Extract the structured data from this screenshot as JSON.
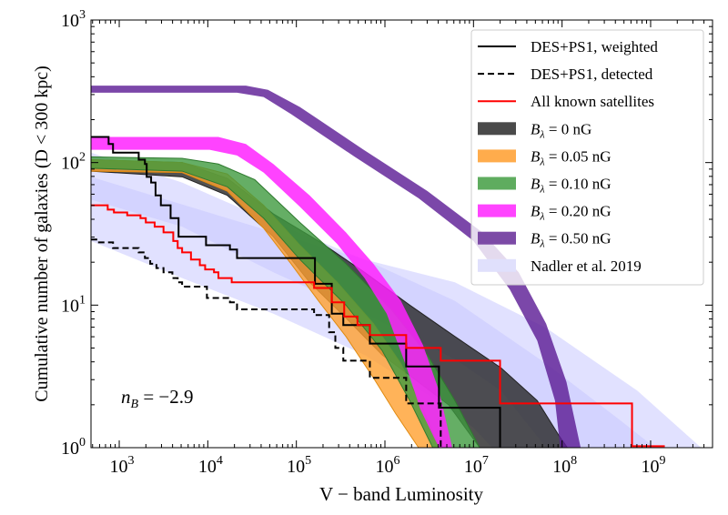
{
  "chart_data": {
    "type": "area",
    "title": "",
    "xlabel": "V − band Luminosity",
    "ylabel": "Cumulative number of galaxies (D < 300 kpc)",
    "xscale": "log",
    "yscale": "log",
    "xlim": [
      480,
      5000000000.0
    ],
    "ylim": [
      1,
      1000
    ],
    "x_ticks": [
      {
        "base": "10",
        "exp": "3",
        "value": 1000.0
      },
      {
        "base": "10",
        "exp": "4",
        "value": 10000.0
      },
      {
        "base": "10",
        "exp": "5",
        "value": 100000.0
      },
      {
        "base": "10",
        "exp": "6",
        "value": 1000000.0
      },
      {
        "base": "10",
        "exp": "7",
        "value": 10000000.0
      },
      {
        "base": "10",
        "exp": "8",
        "value": 100000000.0
      },
      {
        "base": "10",
        "exp": "9",
        "value": 1000000000.0
      }
    ],
    "y_ticks": [
      {
        "base": "10",
        "exp": "0",
        "value": 1
      },
      {
        "base": "10",
        "exp": "1",
        "value": 10
      },
      {
        "base": "10",
        "exp": "2",
        "value": 100
      },
      {
        "base": "10",
        "exp": "3",
        "value": 1000
      }
    ],
    "annotation": {
      "text_main": "n",
      "text_sub": "B",
      "text_rest": " = −2.9"
    },
    "legend_position": "top-right",
    "note": "band and step coordinates given as [log10(L), log10(N)]",
    "bands": [
      {
        "name": "Nadler et al. 2019 (a)",
        "color": "#c8c8ff",
        "opacity": 0.55,
        "upper": [
          [
            2.68,
            2.07
          ],
          [
            3.71,
            1.86
          ],
          [
            4.74,
            1.58
          ],
          [
            5.77,
            1.32
          ],
          [
            6.79,
            1.03
          ],
          [
            7.82,
            0.59
          ],
          [
            8.64,
            0.2
          ],
          [
            9.05,
            0
          ]
        ],
        "lower": [
          [
            2.68,
            1.74
          ],
          [
            3.71,
            1.55
          ],
          [
            4.74,
            1.23
          ],
          [
            5.77,
            0.94
          ],
          [
            6.79,
            0.62
          ],
          [
            7.31,
            0.4
          ],
          [
            7.82,
            0
          ]
        ]
      },
      {
        "name": "Nadler et al. 2019 (b)",
        "color": "#c8c8ff",
        "opacity": 0.55,
        "upper": [
          [
            2.68,
            1.9
          ],
          [
            4.22,
            1.61
          ],
          [
            5.77,
            1.32
          ],
          [
            6.79,
            1.16
          ],
          [
            7.82,
            0.84
          ],
          [
            8.85,
            0.4
          ],
          [
            9.57,
            0
          ]
        ],
        "lower": [
          [
            2.68,
            1.45
          ],
          [
            3.71,
            1.19
          ],
          [
            4.74,
            0.94
          ],
          [
            5.77,
            0.65
          ],
          [
            6.59,
            0.33
          ],
          [
            7.0,
            0.14
          ],
          [
            7.21,
            0
          ]
        ]
      },
      {
        "name": "B_lambda = 0 nG",
        "color": "#2b2b2b",
        "opacity": 0.82,
        "edge": "#222",
        "upper": [
          [
            2.68,
            2.02
          ],
          [
            3.71,
            2.0
          ],
          [
            4.22,
            1.89
          ],
          [
            4.74,
            1.64
          ],
          [
            5.25,
            1.45
          ],
          [
            5.77,
            1.23
          ],
          [
            6.28,
            1.0
          ],
          [
            6.79,
            0.78
          ],
          [
            7.31,
            0.56
          ],
          [
            7.72,
            0.33
          ],
          [
            7.97,
            0.08
          ],
          [
            8.06,
            0
          ]
        ],
        "lower": [
          [
            2.68,
            1.94
          ],
          [
            3.71,
            1.9
          ],
          [
            4.22,
            1.77
          ],
          [
            4.74,
            1.48
          ],
          [
            5.15,
            1.16
          ],
          [
            5.56,
            0.91
          ],
          [
            5.97,
            0.65
          ],
          [
            6.38,
            0.46
          ],
          [
            6.72,
            0.3
          ],
          [
            7.07,
            0
          ]
        ]
      },
      {
        "name": "B_lambda = 0.05 nG",
        "color": "#ffa030",
        "opacity": 0.8,
        "edge": "#e08a10",
        "upper": [
          [
            2.68,
            2.02
          ],
          [
            3.71,
            2.0
          ],
          [
            4.22,
            1.92
          ],
          [
            4.63,
            1.7
          ],
          [
            5.04,
            1.42
          ],
          [
            5.46,
            1.16
          ],
          [
            5.87,
            0.87
          ],
          [
            6.18,
            0.59
          ],
          [
            6.43,
            0.27
          ],
          [
            6.61,
            0
          ]
        ],
        "lower": [
          [
            2.68,
            1.94
          ],
          [
            3.71,
            1.93
          ],
          [
            4.22,
            1.8
          ],
          [
            4.63,
            1.54
          ],
          [
            4.94,
            1.29
          ],
          [
            5.25,
            1.03
          ],
          [
            5.56,
            0.78
          ],
          [
            5.87,
            0.49
          ],
          [
            6.12,
            0.24
          ],
          [
            6.38,
            0
          ]
        ]
      },
      {
        "name": "B_lambda = 0.10 nG",
        "color": "#3f9a3f",
        "opacity": 0.8,
        "edge": "#2f7a2f",
        "upper": [
          [
            2.68,
            2.04
          ],
          [
            3.71,
            2.03
          ],
          [
            4.12,
            1.99
          ],
          [
            4.53,
            1.88
          ],
          [
            5.04,
            1.58
          ],
          [
            5.56,
            1.29
          ],
          [
            6.07,
            0.97
          ],
          [
            6.48,
            0.65
          ],
          [
            6.79,
            0.33
          ],
          [
            7.07,
            0
          ]
        ],
        "lower": [
          [
            2.68,
            1.96
          ],
          [
            3.71,
            1.94
          ],
          [
            4.22,
            1.83
          ],
          [
            4.63,
            1.61
          ],
          [
            5.04,
            1.32
          ],
          [
            5.56,
            1.0
          ],
          [
            5.97,
            0.68
          ],
          [
            6.28,
            0.33
          ],
          [
            6.54,
            0
          ]
        ]
      },
      {
        "name": "B_lambda = 0.20 nG",
        "color": "#ff22ff",
        "opacity": 0.85,
        "upper": [
          [
            2.68,
            2.18
          ],
          [
            4.12,
            2.18
          ],
          [
            4.43,
            2.13
          ],
          [
            4.74,
            1.99
          ],
          [
            5.15,
            1.77
          ],
          [
            5.56,
            1.51
          ],
          [
            5.87,
            1.29
          ],
          [
            6.18,
            1.03
          ],
          [
            6.43,
            0.72
          ],
          [
            6.61,
            0.4
          ],
          [
            6.76,
            0
          ]
        ],
        "lower": [
          [
            2.68,
            2.09
          ],
          [
            4.02,
            2.09
          ],
          [
            4.33,
            2.05
          ],
          [
            4.63,
            1.93
          ],
          [
            5.04,
            1.69
          ],
          [
            5.46,
            1.43
          ],
          [
            5.77,
            1.19
          ],
          [
            6.02,
            0.94
          ],
          [
            6.23,
            0.59
          ],
          [
            6.4,
            0.27
          ],
          [
            6.61,
            0
          ]
        ]
      },
      {
        "name": "B_lambda = 0.50 nG",
        "color": "#5e1f96",
        "opacity": 0.82,
        "upper": [
          [
            2.68,
            2.54
          ],
          [
            4.43,
            2.54
          ],
          [
            4.68,
            2.51
          ],
          [
            5.04,
            2.39
          ],
          [
            5.76,
            2.09
          ],
          [
            6.48,
            1.8
          ],
          [
            7.1,
            1.51
          ],
          [
            7.51,
            1.23
          ],
          [
            7.82,
            0.87
          ],
          [
            8.05,
            0.46
          ],
          [
            8.21,
            0
          ]
        ],
        "lower": [
          [
            2.68,
            2.49
          ],
          [
            4.33,
            2.49
          ],
          [
            4.63,
            2.46
          ],
          [
            4.94,
            2.34
          ],
          [
            5.66,
            2.04
          ],
          [
            6.38,
            1.75
          ],
          [
            7.0,
            1.45
          ],
          [
            7.41,
            1.11
          ],
          [
            7.72,
            0.75
          ],
          [
            7.92,
            0.33
          ],
          [
            7.98,
            0
          ]
        ]
      }
    ],
    "steps": [
      {
        "name": "DES+PS1, weighted",
        "color": "#000000",
        "dash": false,
        "points": [
          [
            2.68,
            2.18
          ],
          [
            2.88,
            2.13
          ],
          [
            2.93,
            2.07
          ],
          [
            3.22,
            2.02
          ],
          [
            3.29,
            1.99
          ],
          [
            3.31,
            1.9
          ],
          [
            3.36,
            1.86
          ],
          [
            3.41,
            1.77
          ],
          [
            3.47,
            1.7
          ],
          [
            3.58,
            1.61
          ],
          [
            3.67,
            1.48
          ],
          [
            3.98,
            1.42
          ],
          [
            4.25,
            1.39
          ],
          [
            4.33,
            1.33
          ],
          [
            5.21,
            1.15
          ],
          [
            5.4,
            0.94
          ],
          [
            5.53,
            0.86
          ],
          [
            5.83,
            0.73
          ],
          [
            6.24,
            0.57
          ],
          [
            6.61,
            0.28
          ],
          [
            7.3,
            0
          ]
        ]
      },
      {
        "name": "DES+PS1, detected",
        "color": "#000000",
        "dash": true,
        "points": [
          [
            2.68,
            1.46
          ],
          [
            2.76,
            1.44
          ],
          [
            2.93,
            1.4
          ],
          [
            3.22,
            1.37
          ],
          [
            3.29,
            1.33
          ],
          [
            3.35,
            1.29
          ],
          [
            3.42,
            1.26
          ],
          [
            3.5,
            1.23
          ],
          [
            3.6,
            1.19
          ],
          [
            3.66,
            1.16
          ],
          [
            3.71,
            1.13
          ],
          [
            3.99,
            1.05
          ],
          [
            4.25,
            1.02
          ],
          [
            4.33,
            0.97
          ],
          [
            5.2,
            0.93
          ],
          [
            5.37,
            0.81
          ],
          [
            5.44,
            0.7
          ],
          [
            5.53,
            0.61
          ],
          [
            5.83,
            0.49
          ],
          [
            6.24,
            0.31
          ],
          [
            6.63,
            0
          ]
        ]
      },
      {
        "name": "All known satellites",
        "color": "#ff0000",
        "dash": false,
        "points": [
          [
            2.68,
            1.7
          ],
          [
            2.87,
            1.67
          ],
          [
            2.94,
            1.65
          ],
          [
            3.09,
            1.63
          ],
          [
            3.24,
            1.61
          ],
          [
            3.3,
            1.58
          ],
          [
            3.4,
            1.55
          ],
          [
            3.5,
            1.51
          ],
          [
            3.61,
            1.45
          ],
          [
            3.66,
            1.4
          ],
          [
            3.71,
            1.37
          ],
          [
            3.81,
            1.32
          ],
          [
            3.91,
            1.28
          ],
          [
            3.97,
            1.25
          ],
          [
            4.07,
            1.23
          ],
          [
            4.12,
            1.19
          ],
          [
            4.27,
            1.16
          ],
          [
            5.2,
            1.12
          ],
          [
            5.4,
            1.02
          ],
          [
            5.54,
            0.92
          ],
          [
            5.69,
            0.86
          ],
          [
            5.83,
            0.79
          ],
          [
            6.24,
            0.7
          ],
          [
            6.63,
            0.61
          ],
          [
            7.3,
            0.31
          ],
          [
            8.79,
            0.01
          ]
        ],
        "end": 9.16
      }
    ],
    "legend": [
      {
        "label": "DES+PS1, weighted",
        "kind": "line",
        "color": "#000000"
      },
      {
        "label": "DES+PS1, detected",
        "kind": "dash",
        "color": "#000000"
      },
      {
        "label": "All known satellites",
        "kind": "line",
        "color": "#ff0000"
      },
      {
        "label": "0 nG",
        "prefix": true,
        "kind": "patch",
        "color": "#4a4a4a"
      },
      {
        "label": "0.05 nG",
        "prefix": true,
        "kind": "patch",
        "color": "#ffac4c"
      },
      {
        "label": "0.10 nG",
        "prefix": true,
        "kind": "patch",
        "color": "#5fac5f"
      },
      {
        "label": "0.20 nG",
        "prefix": true,
        "kind": "patch",
        "color": "#ff44ff"
      },
      {
        "label": "0.50 nG",
        "prefix": true,
        "kind": "patch",
        "color": "#7c4aa6"
      },
      {
        "label": "Nadler et al. 2019",
        "kind": "patch",
        "color": "#e0e0fc"
      }
    ],
    "legend_prefix": {
      "main": "B",
      "sub": "λ",
      "eq": " = "
    }
  }
}
